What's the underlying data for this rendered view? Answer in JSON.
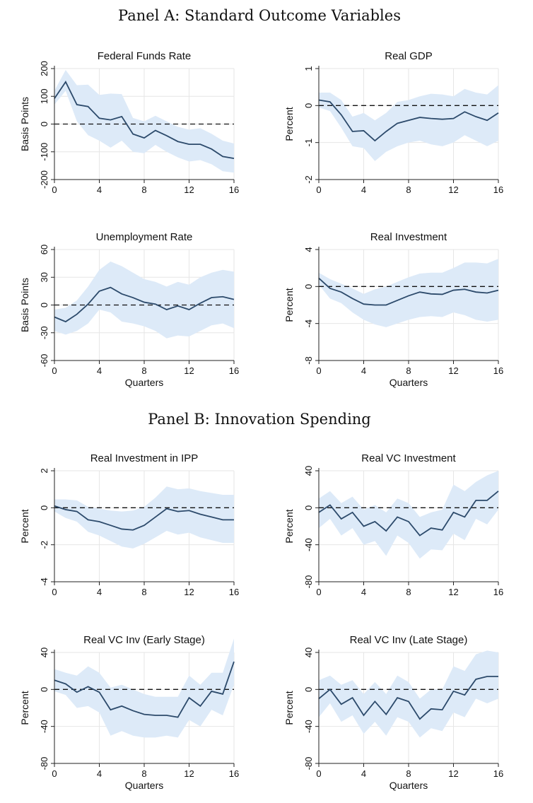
{
  "panels": [
    {
      "title": "Panel A: Standard Outcome Variables"
    },
    {
      "title": "Panel B: Innovation Spending"
    }
  ],
  "style": {
    "line_color": "#2c4a6b",
    "band_color": "#ddeaf8",
    "grid_color": "#e6e6e6",
    "axis_color": "#222222"
  },
  "chart_data": [
    {
      "type": "line",
      "title": "Federal Funds Rate",
      "xlabel": "",
      "ylabel": "Basis Points",
      "xlim": [
        0,
        16
      ],
      "ylim": [
        -200,
        200
      ],
      "xticks": [
        0,
        4,
        8,
        12,
        16
      ],
      "yticks": [
        -200,
        -100,
        0,
        100,
        200
      ],
      "zero_line": true,
      "grid": true,
      "x": [
        0,
        1,
        2,
        3,
        4,
        5,
        6,
        7,
        8,
        9,
        10,
        11,
        12,
        13,
        14,
        15,
        16
      ],
      "series": [
        {
          "values": [
            92,
            152,
            70,
            63,
            21,
            15,
            27,
            -36,
            -50,
            -23,
            -42,
            -63,
            -73,
            -73,
            -90,
            -117,
            -124
          ],
          "upper": [
            120,
            195,
            140,
            142,
            105,
            110,
            108,
            22,
            10,
            30,
            10,
            -10,
            -20,
            -15,
            -35,
            -60,
            -70
          ],
          "lower": [
            70,
            120,
            10,
            -40,
            -60,
            -85,
            -60,
            -100,
            -105,
            -75,
            -100,
            -120,
            -135,
            -130,
            -145,
            -170,
            -175
          ]
        }
      ]
    },
    {
      "type": "line",
      "title": "Real GDP",
      "xlabel": "",
      "ylabel": "Percent",
      "xlim": [
        0,
        16
      ],
      "ylim": [
        -2,
        1
      ],
      "xticks": [
        0,
        4,
        8,
        12,
        16
      ],
      "yticks": [
        -2,
        -1,
        0,
        1
      ],
      "zero_line": true,
      "grid": true,
      "x": [
        0,
        1,
        2,
        3,
        4,
        5,
        6,
        7,
        8,
        9,
        10,
        11,
        12,
        13,
        14,
        15,
        16
      ],
      "series": [
        {
          "values": [
            0.15,
            0.1,
            -0.25,
            -0.7,
            -0.68,
            -0.95,
            -0.7,
            -0.48,
            -0.4,
            -0.32,
            -0.35,
            -0.37,
            -0.35,
            -0.17,
            -0.3,
            -0.4,
            -0.2
          ],
          "upper": [
            0.35,
            0.35,
            0.15,
            -0.3,
            -0.2,
            -0.4,
            -0.2,
            0.1,
            0.15,
            0.25,
            0.32,
            0.3,
            0.25,
            0.45,
            0.35,
            0.3,
            0.55
          ],
          "lower": [
            -0.05,
            -0.15,
            -0.6,
            -1.1,
            -1.15,
            -1.5,
            -1.25,
            -1.1,
            -1.0,
            -0.95,
            -1.05,
            -1.1,
            -1.0,
            -0.8,
            -0.95,
            -1.1,
            -0.95
          ]
        }
      ]
    },
    {
      "type": "line",
      "title": "Unemployment Rate",
      "xlabel": "Quarters",
      "ylabel": "Basis Points",
      "xlim": [
        0,
        16
      ],
      "ylim": [
        -60,
        60
      ],
      "xticks": [
        0,
        4,
        8,
        12,
        16
      ],
      "yticks": [
        -60,
        -30,
        0,
        30,
        60
      ],
      "zero_line": true,
      "grid": true,
      "x": [
        0,
        1,
        2,
        3,
        4,
        5,
        6,
        7,
        8,
        9,
        10,
        11,
        12,
        13,
        14,
        15,
        16
      ],
      "series": [
        {
          "values": [
            -13,
            -18,
            -10,
            1,
            15,
            19,
            12,
            8,
            3,
            1,
            -5,
            -1,
            -5,
            2,
            8,
            9,
            6
          ],
          "upper": [
            -5,
            -3,
            5,
            20,
            38,
            47,
            42,
            35,
            28,
            25,
            20,
            25,
            22,
            30,
            35,
            38,
            36
          ],
          "lower": [
            -28,
            -32,
            -28,
            -20,
            -5,
            -8,
            -18,
            -20,
            -23,
            -28,
            -36,
            -33,
            -34,
            -28,
            -22,
            -20,
            -25
          ]
        }
      ]
    },
    {
      "type": "line",
      "title": "Real Investment",
      "xlabel": "Quarters",
      "ylabel": "Percent",
      "xlim": [
        0,
        16
      ],
      "ylim": [
        -8,
        4
      ],
      "xticks": [
        0,
        4,
        8,
        12,
        16
      ],
      "yticks": [
        -8,
        -4,
        0,
        4
      ],
      "zero_line": true,
      "grid": true,
      "x": [
        0,
        1,
        2,
        3,
        4,
        5,
        6,
        7,
        8,
        9,
        10,
        11,
        12,
        13,
        14,
        15,
        16
      ],
      "series": [
        {
          "values": [
            0.9,
            -0.2,
            -0.6,
            -1.3,
            -1.9,
            -2.0,
            -2.0,
            -1.5,
            -1.0,
            -0.6,
            -0.8,
            -0.85,
            -0.4,
            -0.3,
            -0.6,
            -0.7,
            -0.4
          ],
          "upper": [
            1.5,
            0.8,
            0.3,
            -0.2,
            -0.8,
            -0.3,
            0.0,
            0.5,
            1.0,
            1.4,
            1.5,
            1.5,
            2.0,
            2.6,
            2.6,
            2.5,
            3.0
          ],
          "lower": [
            0.2,
            -1.3,
            -1.8,
            -2.8,
            -3.6,
            -4.1,
            -4.4,
            -4.0,
            -3.6,
            -3.3,
            -3.2,
            -3.3,
            -2.8,
            -3.1,
            -3.6,
            -3.8,
            -3.6
          ]
        }
      ]
    },
    {
      "type": "line",
      "title": "Real Investment in IPP",
      "xlabel": "",
      "ylabel": "Percent",
      "xlim": [
        0,
        16
      ],
      "ylim": [
        -4,
        2
      ],
      "xticks": [
        0,
        4,
        8,
        12,
        16
      ],
      "yticks": [
        -4,
        -2,
        0,
        2
      ],
      "zero_line": true,
      "grid": true,
      "x": [
        0,
        1,
        2,
        3,
        4,
        5,
        6,
        7,
        8,
        9,
        10,
        11,
        12,
        13,
        14,
        15,
        16
      ],
      "series": [
        {
          "values": [
            0.1,
            -0.1,
            -0.2,
            -0.65,
            -0.75,
            -0.95,
            -1.15,
            -1.2,
            -0.95,
            -0.5,
            -0.05,
            -0.2,
            -0.15,
            -0.35,
            -0.5,
            -0.65,
            -0.65
          ],
          "upper": [
            0.45,
            0.45,
            0.4,
            0.05,
            -0.05,
            -0.15,
            -0.2,
            -0.15,
            0.05,
            0.55,
            1.15,
            1.0,
            1.05,
            0.9,
            0.8,
            0.7,
            0.7
          ],
          "lower": [
            -0.2,
            -0.55,
            -0.75,
            -1.3,
            -1.5,
            -1.8,
            -2.1,
            -2.2,
            -1.95,
            -1.6,
            -1.25,
            -1.45,
            -1.35,
            -1.6,
            -1.75,
            -1.9,
            -1.9
          ]
        }
      ]
    },
    {
      "type": "line",
      "title": "Real VC Investment",
      "xlabel": "",
      "ylabel": "Percent",
      "xlim": [
        0,
        16
      ],
      "ylim": [
        -80,
        40
      ],
      "xticks": [
        0,
        4,
        8,
        12,
        16
      ],
      "yticks": [
        -80,
        -40,
        0,
        40
      ],
      "zero_line": true,
      "grid": true,
      "x": [
        0,
        1,
        2,
        3,
        4,
        5,
        6,
        7,
        8,
        9,
        10,
        11,
        12,
        13,
        14,
        15,
        16
      ],
      "series": [
        {
          "values": [
            -5,
            3,
            -12,
            -5,
            -20,
            -15,
            -25,
            -10,
            -15,
            -30,
            -22,
            -24,
            -5,
            -10,
            8,
            8,
            18
          ],
          "upper": [
            10,
            18,
            5,
            12,
            -2,
            3,
            -5,
            10,
            5,
            -10,
            -5,
            -2,
            25,
            18,
            28,
            35,
            40
          ],
          "lower": [
            -22,
            -12,
            -30,
            -22,
            -40,
            -36,
            -52,
            -30,
            -38,
            -55,
            -45,
            -46,
            -28,
            -35,
            -12,
            -18,
            -2
          ]
        }
      ]
    },
    {
      "type": "line",
      "title": "Real VC Inv (Early Stage)",
      "xlabel": "Quarters",
      "ylabel": "Percent",
      "xlim": [
        0,
        16
      ],
      "ylim": [
        -80,
        40
      ],
      "xticks": [
        0,
        4,
        8,
        12,
        16
      ],
      "yticks": [
        -80,
        -40,
        0,
        40
      ],
      "zero_line": true,
      "grid": true,
      "x": [
        0,
        1,
        2,
        3,
        4,
        5,
        6,
        7,
        8,
        9,
        10,
        11,
        12,
        13,
        14,
        15,
        16
      ],
      "series": [
        {
          "values": [
            10,
            6,
            -3,
            3,
            -3,
            -22,
            -18,
            -23,
            -27,
            -28,
            -28,
            -30,
            -9,
            -18,
            -2,
            -5,
            30
          ],
          "upper": [
            22,
            18,
            15,
            25,
            18,
            2,
            5,
            0,
            -5,
            -8,
            -8,
            -8,
            15,
            5,
            18,
            18,
            55
          ],
          "lower": [
            -2,
            -6,
            -20,
            -18,
            -25,
            -50,
            -45,
            -50,
            -52,
            -52,
            -50,
            -52,
            -33,
            -40,
            -22,
            -28,
            5
          ]
        }
      ]
    },
    {
      "type": "line",
      "title": "Real VC Inv (Late Stage)",
      "xlabel": "Quarters",
      "ylabel": "Percent",
      "xlim": [
        0,
        16
      ],
      "ylim": [
        -80,
        40
      ],
      "xticks": [
        0,
        4,
        8,
        12,
        16
      ],
      "yticks": [
        -80,
        -40,
        0,
        40
      ],
      "zero_line": true,
      "grid": true,
      "x": [
        0,
        1,
        2,
        3,
        4,
        5,
        6,
        7,
        8,
        9,
        10,
        11,
        12,
        13,
        14,
        15,
        16
      ],
      "series": [
        {
          "values": [
            -10,
            0,
            -16,
            -9,
            -28,
            -13,
            -27,
            -9,
            -13,
            -32,
            -21,
            -22,
            -2,
            -6,
            11,
            14,
            14
          ],
          "upper": [
            10,
            15,
            5,
            10,
            -5,
            8,
            -5,
            15,
            8,
            -10,
            0,
            0,
            25,
            20,
            38,
            42,
            40
          ],
          "lower": [
            -30,
            -15,
            -35,
            -28,
            -48,
            -35,
            -50,
            -30,
            -35,
            -52,
            -42,
            -45,
            -25,
            -30,
            -10,
            -15,
            -10
          ]
        }
      ]
    }
  ]
}
